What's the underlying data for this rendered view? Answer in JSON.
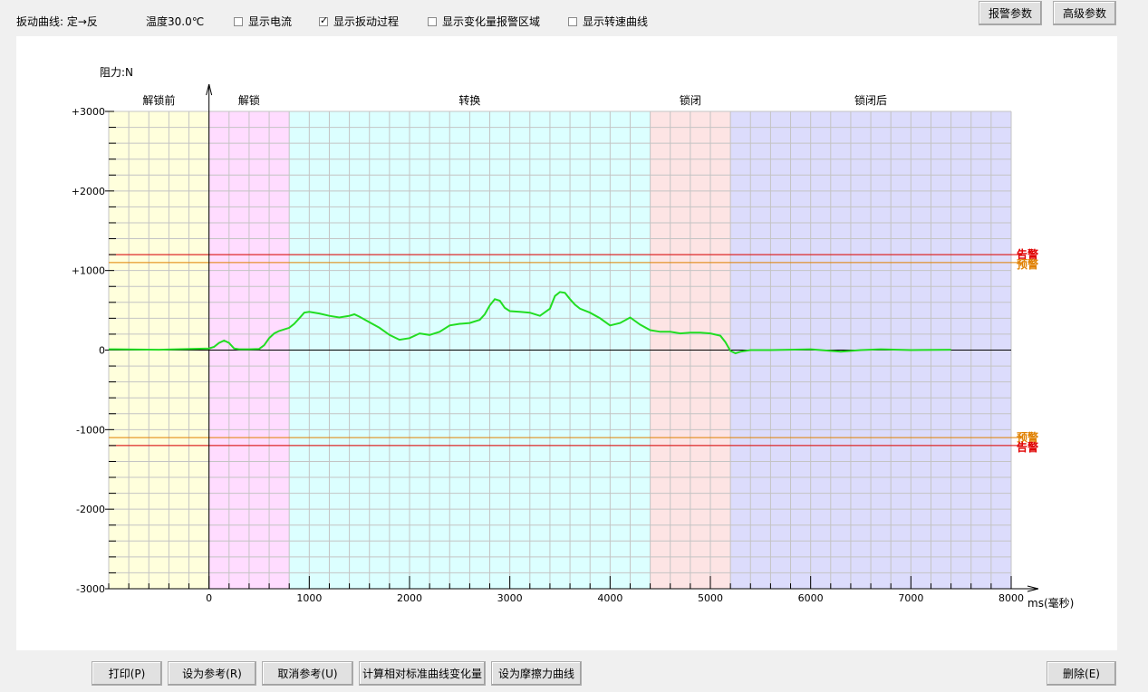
{
  "header": {
    "curve_label": "扳动曲线: 定→反",
    "temperature_label": "温度30.0℃",
    "checkboxes": [
      {
        "label": "显示电流",
        "checked": false
      },
      {
        "label": "显示扳动过程",
        "checked": true
      },
      {
        "label": "显示变化量报警区域",
        "checked": false
      },
      {
        "label": "显示转速曲线",
        "checked": false
      }
    ],
    "alarm_params_button": "报警参数",
    "advanced_params_button": "高级参数"
  },
  "footer": {
    "print_button": "打印(P)",
    "set_reference_button": "设为参考(R)",
    "cancel_reference_button": "取消参考(U)",
    "compute_change_button": "计算相对标准曲线变化量",
    "set_friction_button": "设为摩擦力曲线",
    "delete_button": "删除(E)"
  },
  "chart_data": {
    "type": "line",
    "ylabel": "阻力:N",
    "xlabel": "ms(毫秒)",
    "xlim": [
      -1000,
      8000
    ],
    "ylim": [
      -3000,
      3000
    ],
    "x_ticks": [
      0,
      1000,
      2000,
      3000,
      4000,
      5000,
      6000,
      7000,
      8000
    ],
    "y_ticks": [
      {
        "value": 3000,
        "label": "+3000"
      },
      {
        "value": 2000,
        "label": "+2000"
      },
      {
        "value": 1000,
        "label": "+1000"
      },
      {
        "value": 0,
        "label": "0"
      },
      {
        "value": -1000,
        "label": "-1000"
      },
      {
        "value": -2000,
        "label": "-2000"
      },
      {
        "value": -3000,
        "label": "-3000"
      }
    ],
    "phases": [
      {
        "label": "解锁前",
        "start": -1000,
        "end": 0,
        "color": "#ffffdc"
      },
      {
        "label": "解锁",
        "start": 0,
        "end": 800,
        "color": "#ffdcff"
      },
      {
        "label": "转换",
        "start": 800,
        "end": 4400,
        "color": "#dcffff"
      },
      {
        "label": "锁闭",
        "start": 4400,
        "end": 5200,
        "color": "#fde4e4"
      },
      {
        "label": "锁闭后",
        "start": 5200,
        "end": 8000,
        "color": "#dcdcfc"
      }
    ],
    "thresholds": [
      {
        "label": "告警",
        "value": 1200,
        "color": "#e00000"
      },
      {
        "label": "预警",
        "value": 1100,
        "color": "#e08000"
      },
      {
        "label": "预警",
        "value": -1100,
        "color": "#e08000"
      },
      {
        "label": "告警",
        "value": -1200,
        "color": "#e00000"
      }
    ],
    "grid": true,
    "series": [
      {
        "color": "#22dd22",
        "x": [
          -1000,
          -500,
          0,
          50,
          100,
          150,
          200,
          250,
          300,
          400,
          500,
          550,
          600,
          650,
          700,
          800,
          850,
          900,
          950,
          1000,
          1100,
          1200,
          1300,
          1400,
          1450,
          1500,
          1600,
          1700,
          1800,
          1900,
          2000,
          2100,
          2200,
          2300,
          2400,
          2500,
          2600,
          2700,
          2750,
          2800,
          2850,
          2900,
          2950,
          3000,
          3100,
          3200,
          3300,
          3400,
          3450,
          3500,
          3550,
          3600,
          3650,
          3700,
          3800,
          3900,
          4000,
          4100,
          4200,
          4300,
          4400,
          4500,
          4600,
          4700,
          4800,
          4900,
          5000,
          5100,
          5150,
          5200,
          5250,
          5300,
          5400,
          5600,
          6000,
          6300,
          6500,
          6700,
          7000,
          7400
        ],
        "y": [
          10,
          5,
          20,
          40,
          90,
          120,
          90,
          20,
          10,
          10,
          15,
          60,
          150,
          210,
          240,
          280,
          330,
          400,
          470,
          480,
          460,
          430,
          410,
          430,
          450,
          420,
          350,
          280,
          190,
          130,
          150,
          210,
          190,
          230,
          310,
          330,
          340,
          380,
          450,
          560,
          640,
          620,
          530,
          490,
          480,
          470,
          430,
          520,
          680,
          730,
          720,
          640,
          570,
          520,
          470,
          400,
          310,
          340,
          410,
          320,
          250,
          230,
          230,
          210,
          220,
          220,
          210,
          180,
          100,
          -10,
          -40,
          -20,
          0,
          0,
          10,
          -20,
          0,
          10,
          0,
          5
        ]
      }
    ]
  }
}
